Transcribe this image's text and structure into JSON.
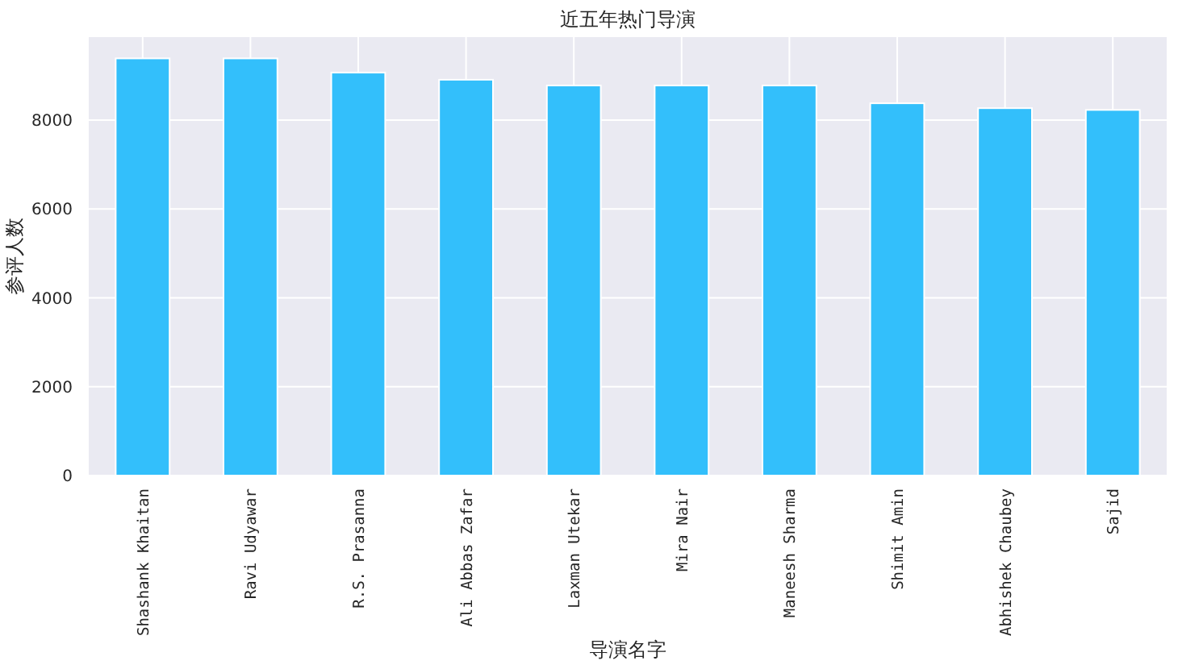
{
  "chart_data": {
    "type": "bar",
    "title": "近五年热门导演",
    "xlabel": "导演名字",
    "ylabel": "参评人数",
    "categories": [
      "Shashank Khaitan",
      "Ravi Udyawar",
      "R.S. Prasanna",
      "Ali Abbas Zafar",
      "Laxman Utekar",
      "Mira Nair",
      "Maneesh Sharma",
      "Shimit Amin",
      "Abhishek Chaubey",
      "Sajid"
    ],
    "series": [
      {
        "color": "#33bffb",
        "values": [
          9390,
          9390,
          9070,
          8910,
          8780,
          8780,
          8780,
          8380,
          8270,
          8230
        ]
      }
    ],
    "ylim": [
      0,
      9870
    ],
    "yticks": [
      0,
      2000,
      4000,
      6000,
      8000
    ],
    "grid": true
  }
}
